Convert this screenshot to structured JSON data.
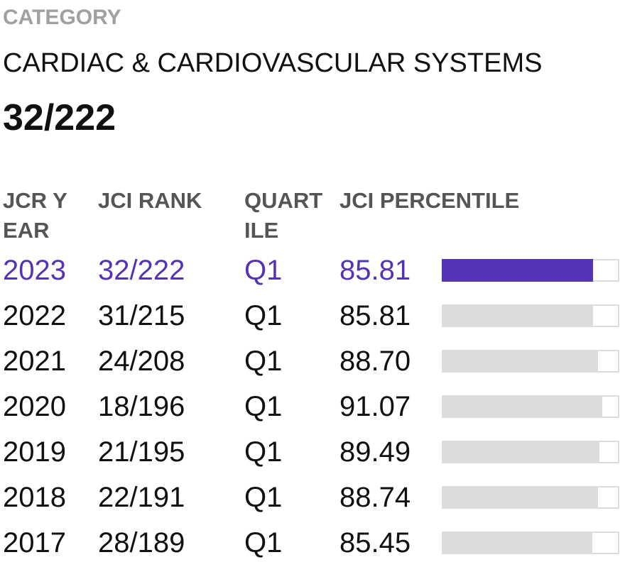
{
  "category_label": "CATEGORY",
  "category_name": "CARDIAC & CARDIOVASCULAR SYSTEMS",
  "category_rank": "32/222",
  "table": {
    "headers": [
      "JCR YEAR",
      "JCI RANK",
      "QUARTILE",
      "JCI PERCENTILE"
    ],
    "xlim": [
      0,
      100
    ],
    "rows": [
      {
        "year": "2023",
        "rank": "32/222",
        "quartile": "Q1",
        "percentile": 85.81,
        "color": "#5533b5"
      },
      {
        "year": "2022",
        "rank": "31/215",
        "quartile": "Q1",
        "percentile": 85.81,
        "color": "#dcdcdc"
      },
      {
        "year": "2021",
        "rank": "24/208",
        "quartile": "Q1",
        "percentile": 88.7,
        "value_label": "88.70",
        "color": "#dcdcdc"
      },
      {
        "year": "2020",
        "rank": "18/196",
        "quartile": "Q1",
        "percentile": 91.07,
        "color": "#dcdcdc"
      },
      {
        "year": "2019",
        "rank": "21/195",
        "quartile": "Q1",
        "percentile": 89.49,
        "color": "#dcdcdc"
      },
      {
        "year": "2018",
        "rank": "22/191",
        "quartile": "Q1",
        "percentile": 88.74,
        "color": "#dcdcdc"
      },
      {
        "year": "2017",
        "rank": "28/189",
        "quartile": "Q1",
        "percentile": 85.45,
        "color": "#dcdcdc"
      }
    ]
  }
}
